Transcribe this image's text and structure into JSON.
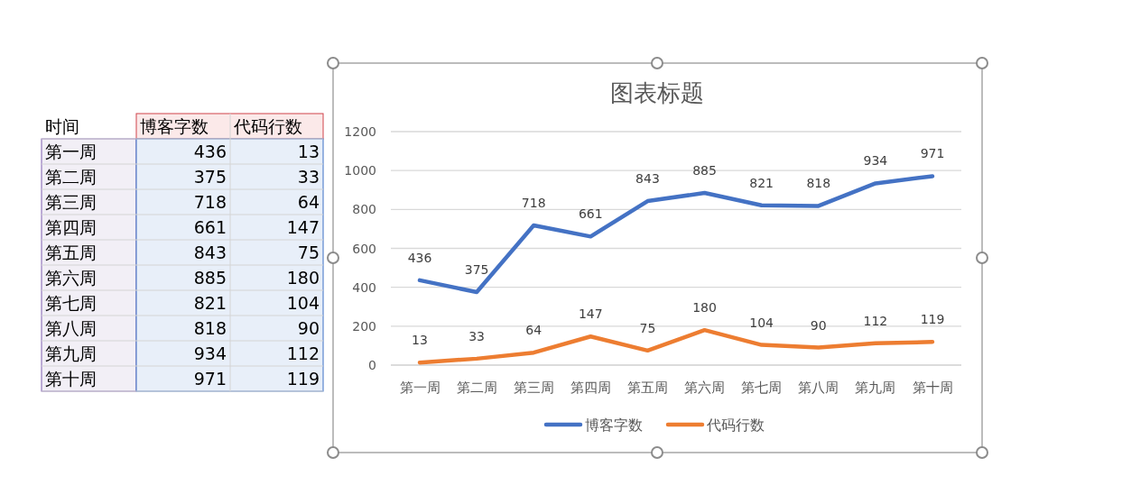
{
  "chart_data": [
    {
      "type": "other",
      "data_labels": true,
      "annotations": [
        "时间"
      ],
      "categories": [
        "第一周",
        "第二周",
        "第三周",
        "第四周",
        "第五周",
        "第六周",
        "第七周",
        "第八周",
        "第九周",
        "第十周"
      ],
      "series": [
        {
          "name": "博客字数",
          "values": [
            436,
            375,
            718,
            661,
            843,
            885,
            821,
            818,
            934,
            971
          ]
        },
        {
          "name": "代码行数",
          "values": [
            13,
            33,
            64,
            147,
            75,
            180,
            104,
            90,
            112,
            119
          ]
        }
      ]
    },
    {
      "type": "line",
      "title": "图表标题",
      "categories": [
        "第一周",
        "第二周",
        "第三周",
        "第四周",
        "第五周",
        "第六周",
        "第七周",
        "第八周",
        "第九周",
        "第十周"
      ],
      "series": [
        {
          "name": "博客字数",
          "color": "#4472c4",
          "values": [
            436,
            375,
            718,
            661,
            843,
            885,
            821,
            818,
            934,
            971
          ]
        },
        {
          "name": "代码行数",
          "color": "#ed7d31",
          "values": [
            13,
            33,
            64,
            147,
            75,
            180,
            104,
            90,
            112,
            119
          ]
        }
      ],
      "ylim": [
        0,
        1200
      ],
      "yticks": [
        0,
        200,
        400,
        600,
        800,
        1000,
        1200
      ],
      "grid": "y",
      "legend": "bottom",
      "data_labels": true,
      "marker": "none",
      "line_style": "solid"
    }
  ]
}
